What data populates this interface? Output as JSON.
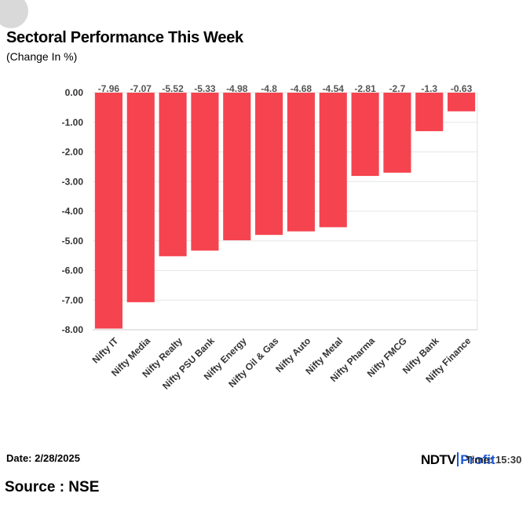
{
  "header": {
    "title": "Sectoral Performance This Week",
    "subtitle": "(Change In %)"
  },
  "footer": {
    "date": "Date: 2/28/2025",
    "source": "Source : NSE",
    "logo_ndtv": "NDTV",
    "logo_profit": "Profit",
    "logo_overlay": "Time: 15:30"
  },
  "colors": {
    "bar": "#f5444f",
    "grid": "#e6e6e6",
    "axis_text": "#333333",
    "label_text": "#555555"
  },
  "chart_data": {
    "type": "bar",
    "title": "Sectoral Performance This Week",
    "subtitle": "(Change In %)",
    "categories": [
      "Nifty IT",
      "Nifty Media",
      "Nifty Realty",
      "Nifty PSU Bank",
      "Nifty Energy",
      "Nifty Oil & Gas",
      "Nifty Auto",
      "Nifty Metal",
      "Nifty Pharma",
      "Nifty FMCG",
      "Nifty Bank",
      "Nifty Finance"
    ],
    "values": [
      -7.96,
      -7.07,
      -5.52,
      -5.33,
      -4.98,
      -4.8,
      -4.68,
      -4.54,
      -2.81,
      -2.7,
      -1.3,
      -0.63
    ],
    "value_labels": [
      "-7.96",
      "-7.07",
      "-5.52",
      "-5.33",
      "-4.98",
      "-4.8",
      "-4.68",
      "-4.54",
      "-2.81",
      "-2.7",
      "-1.3",
      "-0.63"
    ],
    "yticks": [
      0,
      -1,
      -2,
      -3,
      -4,
      -5,
      -6,
      -7,
      -8
    ],
    "ytick_labels": [
      "0.00",
      "-1.00",
      "-2.00",
      "-3.00",
      "-4.00",
      "-5.00",
      "-6.00",
      "-7.00",
      "-8.00"
    ],
    "ylim": [
      -8,
      0
    ],
    "xlabel": "",
    "ylabel": "",
    "grid": true,
    "legend": "none"
  }
}
